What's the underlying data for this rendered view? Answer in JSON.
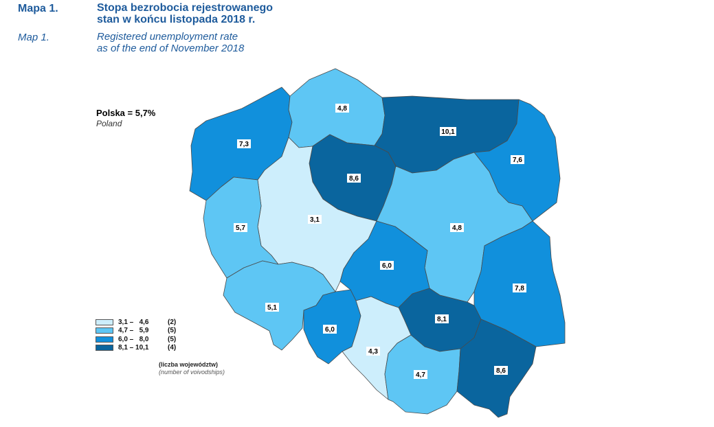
{
  "header": {
    "pl_number": "Mapa 1.",
    "pl_title_line1": "Stopa bezrobocia rejestrowanego",
    "pl_title_line2": "stan w końcu listopada 2018 r.",
    "en_number": "Map 1.",
    "en_title_line1": "Registered unemployment rate",
    "en_title_line2": "as of the end of November 2018"
  },
  "country": {
    "label": "Polska = 5,7%",
    "sublabel": "Poland"
  },
  "colors": {
    "class1": "#cdeefc",
    "class2": "#5ec6f4",
    "class3": "#1190dc",
    "class4": "#0a659e",
    "heading": "#1e5b9c"
  },
  "legend": {
    "items": [
      {
        "range": "3,1 –   4,6",
        "count": "(2)",
        "color": "#cdeefc"
      },
      {
        "range": "4,7 –   5,9",
        "count": "(5)",
        "color": "#5ec6f4"
      },
      {
        "range": "6,0 –   8,0",
        "count": "(5)",
        "color": "#1190dc"
      },
      {
        "range": "8,1 – 10,1",
        "count": "(4)",
        "color": "#0a659e"
      }
    ],
    "note": "(liczba województw)",
    "note_en": "(number of voivodships)"
  },
  "regions": [
    {
      "id": "zachodniopomorskie",
      "value": "7,3"
    },
    {
      "id": "pomorskie",
      "value": "4,8"
    },
    {
      "id": "warminsko-mazurskie",
      "value": "10,1"
    },
    {
      "id": "podlaskie",
      "value": "7,6"
    },
    {
      "id": "kujawsko-pomorskie",
      "value": "8,6"
    },
    {
      "id": "wielkopolskie",
      "value": "3,1"
    },
    {
      "id": "lubuskie",
      "value": "5,7"
    },
    {
      "id": "mazowieckie",
      "value": "4,8"
    },
    {
      "id": "lodzkie",
      "value": "6,0"
    },
    {
      "id": "lubelskie",
      "value": "7,8"
    },
    {
      "id": "dolnoslaskie",
      "value": "5,1"
    },
    {
      "id": "opolskie",
      "value": "6,0"
    },
    {
      "id": "swietokrzyskie",
      "value": "8,1"
    },
    {
      "id": "slaskie",
      "value": "4,3"
    },
    {
      "id": "malopolskie",
      "value": "4,7"
    },
    {
      "id": "podkarpackie",
      "value": "8,6"
    }
  ]
}
